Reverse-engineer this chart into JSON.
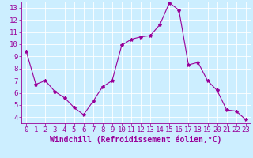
{
  "x": [
    0,
    1,
    2,
    3,
    4,
    5,
    6,
    7,
    8,
    9,
    10,
    11,
    12,
    13,
    14,
    15,
    16,
    17,
    18,
    19,
    20,
    21,
    22,
    23
  ],
  "y": [
    9.4,
    6.7,
    7.0,
    6.1,
    5.6,
    4.8,
    4.2,
    5.3,
    6.5,
    7.0,
    9.9,
    10.4,
    10.6,
    10.7,
    11.6,
    13.4,
    12.8,
    8.3,
    8.5,
    7.0,
    6.2,
    4.6,
    4.5,
    3.8
  ],
  "line_color": "#990099",
  "marker": "*",
  "marker_size": 3,
  "bg_color": "#cceeff",
  "grid_color": "#ffffff",
  "xlabel": "Windchill (Refroidissement éolien,°C)",
  "xlabel_color": "#990099",
  "xlabel_fontsize": 7,
  "tick_color": "#990099",
  "tick_fontsize": 6.5,
  "ylim": [
    3.5,
    13.5
  ],
  "xlim": [
    -0.5,
    23.5
  ],
  "yticks": [
    4,
    5,
    6,
    7,
    8,
    9,
    10,
    11,
    12,
    13
  ],
  "xticks": [
    0,
    1,
    2,
    3,
    4,
    5,
    6,
    7,
    8,
    9,
    10,
    11,
    12,
    13,
    14,
    15,
    16,
    17,
    18,
    19,
    20,
    21,
    22,
    23
  ],
  "spine_color": "#990099",
  "linewidth": 0.8
}
